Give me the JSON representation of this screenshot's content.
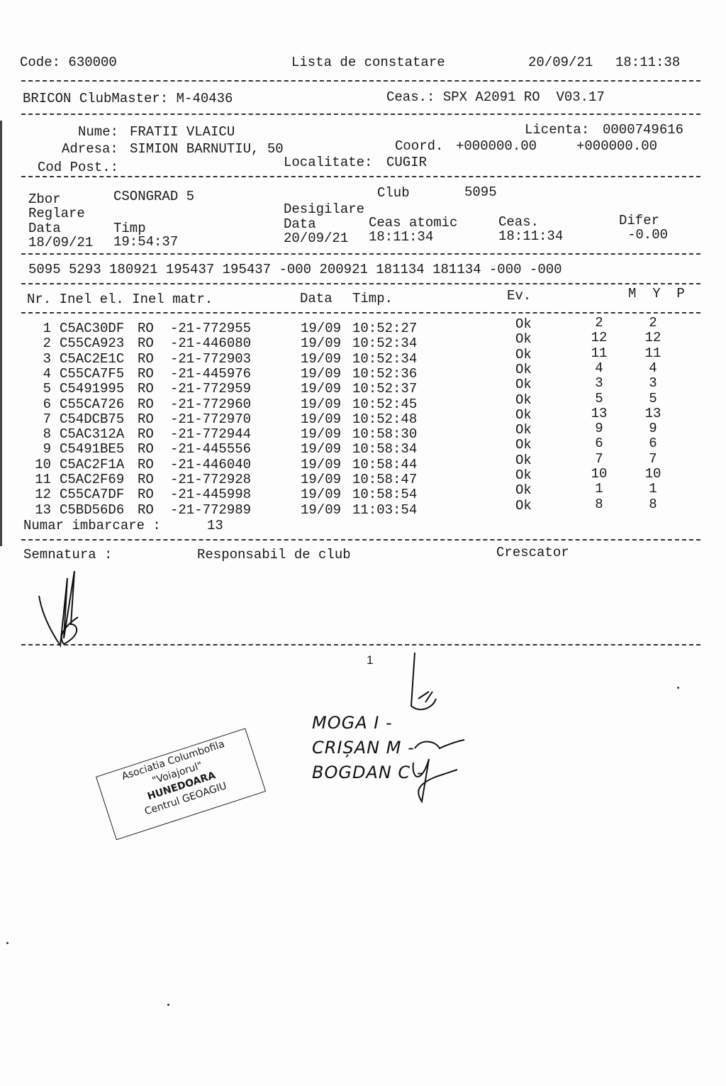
{
  "header": {
    "code": "Code: 630000",
    "title": "Lista de constatare",
    "date": "20/09/21",
    "time": "18:11:38"
  },
  "device": {
    "clubmaster": "BRICON ClubMaster: M-40436",
    "clock": "Ceas.: SPX A2091 RO  V03.17"
  },
  "owner": {
    "name_label": "Nume:",
    "name": "FRATII VLAICU",
    "address_label": "Adresa:",
    "address": "SIMION BARNUTIU, 50",
    "postcode_label": "Cod Post.:",
    "license_label": "Licenta:",
    "license": "0000749616",
    "coord_label": "Coord.",
    "coord1": "+000000.00",
    "coord2": "+000000.00",
    "locality_label": "Localitate:",
    "locality": "CUGIR"
  },
  "flight": {
    "zbor_label": "Zbor",
    "zbor": "CSONGRAD 5",
    "club_label": "Club",
    "club": "5095",
    "reglare_label": "Reglare",
    "desigilare_label": "Desigilare",
    "data_label": "Data",
    "timp_label": "Timp",
    "reg_date": "18/09/21",
    "reg_time": "19:54:37",
    "des_data_label": "Data",
    "atomic_label": "Ceas atomic",
    "ceas_label": "Ceas.",
    "difer_label": "Difer",
    "des_date": "20/09/21",
    "atomic": "18:11:34",
    "ceas": "18:11:34",
    "difer": "-0.00"
  },
  "code_line": "5095 5293 180921 195437 195437 -000 200921 181134 181134 -000 -000",
  "table": {
    "headers": {
      "left": "Nr. Inel el. Inel matr.",
      "data": "Data",
      "timp": "Timp.",
      "ev": "Ev.",
      "myp": "M  Y  P"
    },
    "rows": [
      {
        "nr": "1",
        "ring": "C5AC30DF",
        "country": "RO",
        "matr": "-21-772955",
        "date": "19/09",
        "time": "10:52:27",
        "ev": "Ok",
        "m": "2",
        "y": "2"
      },
      {
        "nr": "2",
        "ring": "C55CA923",
        "country": "RO",
        "matr": "-21-446080",
        "date": "19/09",
        "time": "10:52:34",
        "ev": "Ok",
        "m": "12",
        "y": "12"
      },
      {
        "nr": "3",
        "ring": "C5AC2E1C",
        "country": "RO",
        "matr": "-21-772903",
        "date": "19/09",
        "time": "10:52:34",
        "ev": "Ok",
        "m": "11",
        "y": "11"
      },
      {
        "nr": "4",
        "ring": "C55CA7F5",
        "country": "RO",
        "matr": "-21-445976",
        "date": "19/09",
        "time": "10:52:36",
        "ev": "Ok",
        "m": "4",
        "y": "4"
      },
      {
        "nr": "5",
        "ring": "C5491995",
        "country": "RO",
        "matr": "-21-772959",
        "date": "19/09",
        "time": "10:52:37",
        "ev": "Ok",
        "m": "3",
        "y": "3"
      },
      {
        "nr": "6",
        "ring": "C55CA726",
        "country": "RO",
        "matr": "-21-772960",
        "date": "19/09",
        "time": "10:52:45",
        "ev": "Ok",
        "m": "5",
        "y": "5"
      },
      {
        "nr": "7",
        "ring": "C54DCB75",
        "country": "RO",
        "matr": "-21-772970",
        "date": "19/09",
        "time": "10:52:48",
        "ev": "Ok",
        "m": "13",
        "y": "13"
      },
      {
        "nr": "8",
        "ring": "C5AC312A",
        "country": "RO",
        "matr": "-21-772944",
        "date": "19/09",
        "time": "10:58:30",
        "ev": "Ok",
        "m": "9",
        "y": "9"
      },
      {
        "nr": "9",
        "ring": "C5491BE5",
        "country": "RO",
        "matr": "-21-445556",
        "date": "19/09",
        "time": "10:58:34",
        "ev": "Ok",
        "m": "6",
        "y": "6"
      },
      {
        "nr": "10",
        "ring": "C5AC2F1A",
        "country": "RO",
        "matr": "-21-446040",
        "date": "19/09",
        "time": "10:58:44",
        "ev": "Ok",
        "m": "7",
        "y": "7"
      },
      {
        "nr": "11",
        "ring": "C5AC2F69",
        "country": "RO",
        "matr": "-21-772928",
        "date": "19/09",
        "time": "10:58:47",
        "ev": "Ok",
        "m": "10",
        "y": "10"
      },
      {
        "nr": "12",
        "ring": "C55CA7DF",
        "country": "RO",
        "matr": "-21-445998",
        "date": "19/09",
        "time": "10:58:54",
        "ev": "Ok",
        "m": "1",
        "y": "1"
      },
      {
        "nr": "13",
        "ring": "C5BD56D6",
        "country": "RO",
        "matr": "-21-772989",
        "date": "19/09",
        "time": "11:03:54",
        "ev": "Ok",
        "m": "8",
        "y": "8"
      }
    ],
    "total_label": "Numar imbarcare :",
    "total": "13"
  },
  "footer": {
    "semnatura": "Semnatura :",
    "responsabil": "Responsabil de club",
    "crescator": "Crescator",
    "page": "1"
  },
  "handwritten": {
    "line1": "MOGA I -",
    "line2": "CRIȘAN M -",
    "line3": "BOGDAN C -"
  },
  "stamp": {
    "line1": "Asociatia Columbofila",
    "line2": "\"Voiajorul\"",
    "line3": "HUNEDOARA",
    "line4": "Centrul GEOAGIU"
  }
}
